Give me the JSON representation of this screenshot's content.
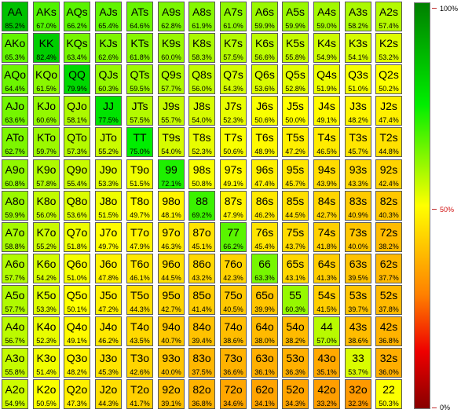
{
  "matrix": {
    "rows": [
      [
        [
          "AA",
          "85.2%"
        ],
        [
          "AKs",
          "67.0%"
        ],
        [
          "AQs",
          "66.2%"
        ],
        [
          "AJs",
          "65.4%"
        ],
        [
          "ATs",
          "64.6%"
        ],
        [
          "A9s",
          "62.8%"
        ],
        [
          "A8s",
          "61.9%"
        ],
        [
          "A7s",
          "61.0%"
        ],
        [
          "A6s",
          "59.9%"
        ],
        [
          "A5s",
          "59.9%"
        ],
        [
          "A4s",
          "59.0%"
        ],
        [
          "A3s",
          "58.2%"
        ],
        [
          "A2s",
          "57.4%"
        ]
      ],
      [
        [
          "AKo",
          "65.3%"
        ],
        [
          "KK",
          "82.4%"
        ],
        [
          "KQs",
          "63.4%"
        ],
        [
          "KJs",
          "62.6%"
        ],
        [
          "KTs",
          "61.8%"
        ],
        [
          "K9s",
          "60.0%"
        ],
        [
          "K8s",
          "58.3%"
        ],
        [
          "K7s",
          "57.5%"
        ],
        [
          "K6s",
          "56.6%"
        ],
        [
          "K5s",
          "55.8%"
        ],
        [
          "K4s",
          "54.9%"
        ],
        [
          "K3s",
          "54.1%"
        ],
        [
          "K2s",
          "53.2%"
        ]
      ],
      [
        [
          "AQo",
          "64.4%"
        ],
        [
          "KQo",
          "61.5%"
        ],
        [
          "QQ",
          "79.9%"
        ],
        [
          "QJs",
          "60.3%"
        ],
        [
          "QTs",
          "59.5%"
        ],
        [
          "Q9s",
          "57.7%"
        ],
        [
          "Q8s",
          "56.0%"
        ],
        [
          "Q7s",
          "54.3%"
        ],
        [
          "Q6s",
          "53.6%"
        ],
        [
          "Q5s",
          "52.8%"
        ],
        [
          "Q4s",
          "51.9%"
        ],
        [
          "Q3s",
          "51.0%"
        ],
        [
          "Q2s",
          "50.2%"
        ]
      ],
      [
        [
          "AJo",
          "63.6%"
        ],
        [
          "KJo",
          "60.6%"
        ],
        [
          "QJo",
          "58.1%"
        ],
        [
          "JJ",
          "77.5%"
        ],
        [
          "JTs",
          "57.5%"
        ],
        [
          "J9s",
          "55.7%"
        ],
        [
          "J8s",
          "54.0%"
        ],
        [
          "J7s",
          "52.3%"
        ],
        [
          "J6s",
          "50.6%"
        ],
        [
          "J5s",
          "50.0%"
        ],
        [
          "J4s",
          "49.1%"
        ],
        [
          "J3s",
          "48.2%"
        ],
        [
          "J2s",
          "47.4%"
        ]
      ],
      [
        [
          "ATo",
          "62.7%"
        ],
        [
          "KTo",
          "59.7%"
        ],
        [
          "QTo",
          "57.3%"
        ],
        [
          "JTo",
          "55.2%"
        ],
        [
          "TT",
          "75.0%"
        ],
        [
          "T9s",
          "54.0%"
        ],
        [
          "T8s",
          "52.3%"
        ],
        [
          "T7s",
          "50.6%"
        ],
        [
          "T6s",
          "48.9%"
        ],
        [
          "T5s",
          "47.2%"
        ],
        [
          "T4s",
          "46.5%"
        ],
        [
          "T3s",
          "45.7%"
        ],
        [
          "T2s",
          "44.8%"
        ]
      ],
      [
        [
          "A9o",
          "60.8%"
        ],
        [
          "K9o",
          "57.8%"
        ],
        [
          "Q9o",
          "55.4%"
        ],
        [
          "J9o",
          "53.3%"
        ],
        [
          "T9o",
          "51.5%"
        ],
        [
          "99",
          "72.1%"
        ],
        [
          "98s",
          "50.8%"
        ],
        [
          "97s",
          "49.1%"
        ],
        [
          "96s",
          "47.4%"
        ],
        [
          "95s",
          "45.7%"
        ],
        [
          "94s",
          "43.9%"
        ],
        [
          "93s",
          "43.3%"
        ],
        [
          "92s",
          "42.4%"
        ]
      ],
      [
        [
          "A8o",
          "59.9%"
        ],
        [
          "K8o",
          "56.0%"
        ],
        [
          "Q8o",
          "53.6%"
        ],
        [
          "J8o",
          "51.5%"
        ],
        [
          "T8o",
          "49.7%"
        ],
        [
          "98o",
          "48.1%"
        ],
        [
          "88",
          "69.2%"
        ],
        [
          "87s",
          "47.9%"
        ],
        [
          "86s",
          "46.2%"
        ],
        [
          "85s",
          "44.5%"
        ],
        [
          "84s",
          "42.7%"
        ],
        [
          "83s",
          "40.9%"
        ],
        [
          "82s",
          "40.3%"
        ]
      ],
      [
        [
          "A7o",
          "58.8%"
        ],
        [
          "K7o",
          "55.2%"
        ],
        [
          "Q7o",
          "51.8%"
        ],
        [
          "J7o",
          "49.7%"
        ],
        [
          "T7o",
          "47.9%"
        ],
        [
          "97o",
          "46.3%"
        ],
        [
          "87o",
          "45.1%"
        ],
        [
          "77",
          "66.2%"
        ],
        [
          "76s",
          "45.4%"
        ],
        [
          "75s",
          "43.7%"
        ],
        [
          "74s",
          "41.8%"
        ],
        [
          "73s",
          "40.0%"
        ],
        [
          "72s",
          "38.2%"
        ]
      ],
      [
        [
          "A6o",
          "57.7%"
        ],
        [
          "K6o",
          "54.2%"
        ],
        [
          "Q6o",
          "51.0%"
        ],
        [
          "J6o",
          "47.8%"
        ],
        [
          "T6o",
          "46.1%"
        ],
        [
          "96o",
          "44.5%"
        ],
        [
          "86o",
          "43.2%"
        ],
        [
          "76o",
          "42.3%"
        ],
        [
          "66",
          "63.3%"
        ],
        [
          "65s",
          "43.1%"
        ],
        [
          "64s",
          "41.3%"
        ],
        [
          "63s",
          "39.5%"
        ],
        [
          "62s",
          "37.7%"
        ]
      ],
      [
        [
          "A5o",
          "57.7%"
        ],
        [
          "K5o",
          "53.3%"
        ],
        [
          "Q5o",
          "50.1%"
        ],
        [
          "J5o",
          "47.2%"
        ],
        [
          "T5o",
          "44.3%"
        ],
        [
          "95o",
          "42.7%"
        ],
        [
          "85o",
          "41.4%"
        ],
        [
          "75o",
          "40.5%"
        ],
        [
          "65o",
          "39.9%"
        ],
        [
          "55",
          "60.3%"
        ],
        [
          "54s",
          "41.5%"
        ],
        [
          "53s",
          "39.7%"
        ],
        [
          "52s",
          "37.8%"
        ]
      ],
      [
        [
          "A4o",
          "56.7%"
        ],
        [
          "K4o",
          "52.3%"
        ],
        [
          "Q4o",
          "49.1%"
        ],
        [
          "J4o",
          "46.2%"
        ],
        [
          "T4o",
          "43.5%"
        ],
        [
          "94o",
          "40.7%"
        ],
        [
          "84o",
          "39.4%"
        ],
        [
          "74o",
          "38.6%"
        ],
        [
          "64o",
          "38.0%"
        ],
        [
          "54o",
          "38.2%"
        ],
        [
          "44",
          "57.0%"
        ],
        [
          "43s",
          "38.6%"
        ],
        [
          "42s",
          "36.8%"
        ]
      ],
      [
        [
          "A3o",
          "55.8%"
        ],
        [
          "K3o",
          "51.4%"
        ],
        [
          "Q3o",
          "48.2%"
        ],
        [
          "J3o",
          "45.3%"
        ],
        [
          "T3o",
          "42.6%"
        ],
        [
          "93o",
          "40.0%"
        ],
        [
          "83o",
          "37.5%"
        ],
        [
          "73o",
          "36.6%"
        ],
        [
          "63o",
          "36.1%"
        ],
        [
          "53o",
          "36.3%"
        ],
        [
          "43o",
          "35.1%"
        ],
        [
          "33",
          "53.7%"
        ],
        [
          "32s",
          "36.0%"
        ]
      ],
      [
        [
          "A2o",
          "54.9%"
        ],
        [
          "K2o",
          "50.5%"
        ],
        [
          "Q2o",
          "47.3%"
        ],
        [
          "J2o",
          "44.3%"
        ],
        [
          "T2o",
          "41.7%"
        ],
        [
          "92o",
          "39.1%"
        ],
        [
          "82o",
          "36.8%"
        ],
        [
          "72o",
          "34.6%"
        ],
        [
          "62o",
          "34.1%"
        ],
        [
          "52o",
          "34.3%"
        ],
        [
          "42o",
          "33.2%"
        ],
        [
          "32o",
          "32.3%"
        ],
        [
          "22",
          "50.3%"
        ]
      ]
    ]
  },
  "legend": {
    "top_label": "100%",
    "mid_label": "50%",
    "bottom_label": "0%",
    "colors": {
      "max": "#008000",
      "high": "#00ee00",
      "mid": "#ffff00",
      "low": "#ff8000",
      "lower": "#ee0000",
      "min": "#880000"
    }
  }
}
